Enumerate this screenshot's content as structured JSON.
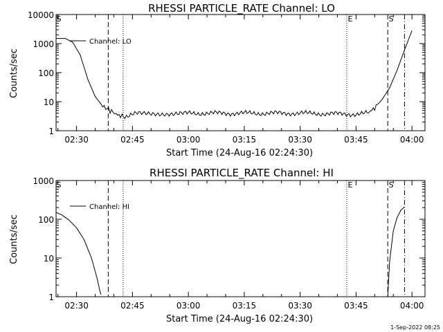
{
  "stamp": "1-Sep-2022 08:25",
  "chart_data": [
    {
      "type": "line",
      "title": "RHESSI PARTICLE_RATE Channel: LO",
      "xlabel": "Start Time (24-Aug-16 02:24:30)",
      "ylabel": "Counts/sec",
      "yscale": "log",
      "ylim": [
        1,
        10000
      ],
      "xlim": [
        "02:24:30",
        "04:03:30"
      ],
      "xticks": [
        "02:30",
        "02:45",
        "03:00",
        "03:15",
        "03:30",
        "03:45",
        "04:00"
      ],
      "yticks": [
        "1",
        "10",
        "100",
        "1000",
        "10000"
      ],
      "legend_position": "top-left",
      "series": [
        {
          "name": "Channel: LO",
          "x": [
            "02:24:30",
            "02:27:00",
            "02:29:00",
            "02:31:00",
            "02:33:00",
            "02:35:00",
            "02:37:00",
            "02:39:00",
            "02:41:00",
            "02:43:00",
            "02:46:00",
            "03:00:00",
            "03:15:00",
            "03:30:00",
            "03:45:00",
            "03:48:00",
            "03:50:00",
            "03:52:00",
            "03:54:00",
            "03:56:00",
            "03:58:00",
            "04:00:00"
          ],
          "y": [
            1500,
            1500,
            1100,
            400,
            60,
            15,
            7,
            5,
            3.5,
            3,
            3.8,
            4,
            4,
            4,
            3.7,
            4,
            6,
            12,
            30,
            120,
            600,
            2800
          ]
        }
      ],
      "markers": [
        {
          "label": "S",
          "time": "02:24:30",
          "style": "none"
        },
        {
          "label": "",
          "time": "02:38:30",
          "style": "dashed"
        },
        {
          "label": "",
          "time": "02:42:30",
          "style": "dotted"
        },
        {
          "label": "E",
          "time": "03:42:30",
          "style": "dotted"
        },
        {
          "label": "S",
          "time": "03:53:30",
          "style": "dashed"
        },
        {
          "label": "",
          "time": "03:58:00",
          "style": "dashdot"
        }
      ]
    },
    {
      "type": "line",
      "title": "RHESSI PARTICLE_RATE Channel: HI",
      "xlabel": "Start Time (24-Aug-16 02:24:30)",
      "ylabel": "Counts/sec",
      "yscale": "log",
      "ylim": [
        1,
        1000
      ],
      "xlim": [
        "02:24:30",
        "04:03:30"
      ],
      "xticks": [
        "02:30",
        "02:45",
        "03:00",
        "03:15",
        "03:30",
        "03:45",
        "04:00"
      ],
      "yticks": [
        "1",
        "10",
        "100",
        "1000"
      ],
      "legend_position": "top-left",
      "series": [
        {
          "name": "Channel: HI",
          "x": [
            "02:24:30",
            "02:26:00",
            "02:28:00",
            "02:30:00",
            "02:32:00",
            "02:34:00",
            "02:35:30",
            "02:36:20",
            "02:36:50",
            "03:53:30",
            "03:54:00",
            "03:55:00",
            "03:56:00",
            "03:57:00",
            "03:58:00"
          ],
          "y": [
            150,
            130,
            95,
            60,
            30,
            10,
            3,
            1.3,
            1,
            1,
            8,
            50,
            110,
            170,
            210
          ]
        }
      ],
      "markers": [
        {
          "label": "S",
          "time": "02:24:30",
          "style": "none"
        },
        {
          "label": "",
          "time": "02:38:30",
          "style": "dashed"
        },
        {
          "label": "",
          "time": "02:42:30",
          "style": "dotted"
        },
        {
          "label": "E",
          "time": "03:42:30",
          "style": "dotted"
        },
        {
          "label": "S",
          "time": "03:53:30",
          "style": "dashed"
        },
        {
          "label": "",
          "time": "03:58:00",
          "style": "dashdot"
        }
      ]
    }
  ]
}
